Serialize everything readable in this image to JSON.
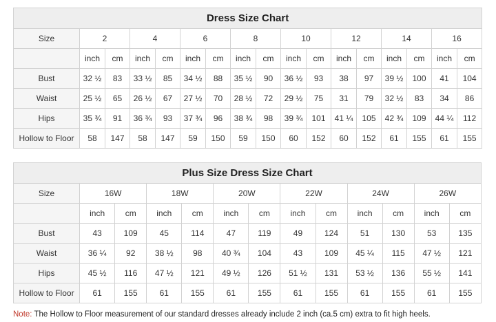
{
  "standard": {
    "title": "Dress Size Chart",
    "size_label": "Size",
    "sizes": [
      "2",
      "4",
      "6",
      "8",
      "10",
      "12",
      "14",
      "16"
    ],
    "unit_inch": "inch",
    "unit_cm": "cm",
    "rows": [
      {
        "label": "Bust",
        "values": [
          "32 ½",
          "83",
          "33 ½",
          "85",
          "34 ½",
          "88",
          "35 ½",
          "90",
          "36 ½",
          "93",
          "38",
          "97",
          "39 ½",
          "100",
          "41",
          "104"
        ]
      },
      {
        "label": "Waist",
        "values": [
          "25 ½",
          "65",
          "26 ½",
          "67",
          "27 ½",
          "70",
          "28 ½",
          "72",
          "29 ½",
          "75",
          "31",
          "79",
          "32 ½",
          "83",
          "34",
          "86"
        ]
      },
      {
        "label": "Hips",
        "values": [
          "35 ¾",
          "91",
          "36 ¾",
          "93",
          "37 ¾",
          "96",
          "38 ¾",
          "98",
          "39 ¾",
          "101",
          "41 ¼",
          "105",
          "42 ¾",
          "109",
          "44 ¼",
          "112"
        ]
      },
      {
        "label": "Hollow to Floor",
        "values": [
          "58",
          "147",
          "58",
          "147",
          "59",
          "150",
          "59",
          "150",
          "60",
          "152",
          "60",
          "152",
          "61",
          "155",
          "61",
          "155"
        ]
      }
    ]
  },
  "plus": {
    "title": "Plus Size Dress Size Chart",
    "size_label": "Size",
    "sizes": [
      "16W",
      "18W",
      "20W",
      "22W",
      "24W",
      "26W"
    ],
    "unit_inch": "inch",
    "unit_cm": "cm",
    "rows": [
      {
        "label": "Bust",
        "values": [
          "43",
          "109",
          "45",
          "114",
          "47",
          "119",
          "49",
          "124",
          "51",
          "130",
          "53",
          "135"
        ]
      },
      {
        "label": "Waist",
        "values": [
          "36 ¼",
          "92",
          "38 ½",
          "98",
          "40 ¾",
          "104",
          "43",
          "109",
          "45 ¼",
          "115",
          "47 ½",
          "121"
        ]
      },
      {
        "label": "Hips",
        "values": [
          "45 ½",
          "116",
          "47 ½",
          "121",
          "49 ½",
          "126",
          "51 ½",
          "131",
          "53 ½",
          "136",
          "55 ½",
          "141"
        ]
      },
      {
        "label": "Hollow to Floor",
        "values": [
          "61",
          "155",
          "61",
          "155",
          "61",
          "155",
          "61",
          "155",
          "61",
          "155",
          "61",
          "155"
        ]
      }
    ]
  },
  "note": {
    "label": "Note:",
    "text": " The Hollow to Floor measurement of our standard dresses already include 2 inch (ca.5 cm) extra to fit high heels."
  }
}
